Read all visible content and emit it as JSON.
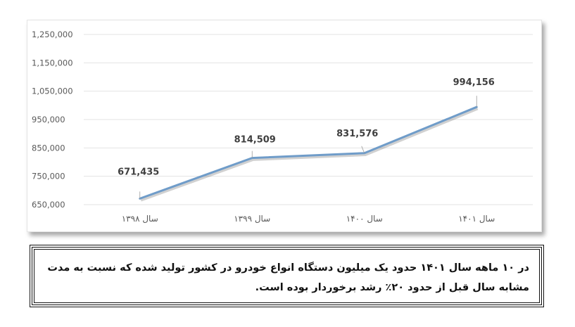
{
  "chart_data": {
    "type": "line",
    "categories": [
      "سال ۱۳۹۸",
      "سال ۱۳۹۹",
      "سال ۱۴۰۰",
      "سال ۱۴۰۱"
    ],
    "values": [
      671435,
      814509,
      831576,
      994156
    ],
    "data_labels": [
      "671,435",
      "814,509",
      "831,576",
      "994,156"
    ],
    "yticks": [
      "650,000",
      "750,000",
      "850,000",
      "950,000",
      "1,050,000",
      "1,150,000",
      "1,250,000"
    ],
    "ylim": [
      650000,
      1250000
    ],
    "grid": true,
    "line_color": "#6f9cc9"
  },
  "caption": {
    "text": "در ۱۰ ماهه سال ۱۴۰۱ حدود یک میلیون دستگاه انواع خودرو در کشور تولید شده که نسبت به مدت مشابه سال قبل از حدود ۲۰٪ رشد برخوردار بوده است."
  }
}
